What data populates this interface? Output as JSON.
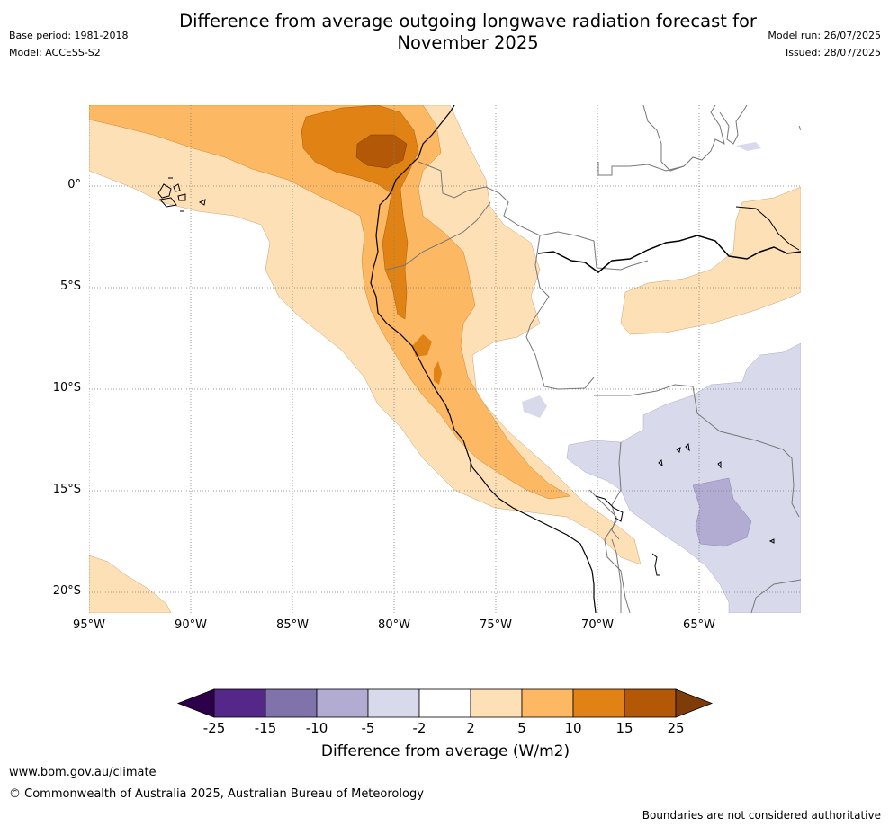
{
  "header": {
    "title_line1": "Difference from average outgoing longwave radiation forecast for",
    "title_line2": "November 2025",
    "base_period": "Base period: 1981-2018",
    "model": "Model: ACCESS-S2",
    "model_run": "Model run: 26/07/2025",
    "issued": "Issued: 28/07/2025"
  },
  "map": {
    "lat_labels": [
      "0°",
      "5°S",
      "10°S",
      "15°S",
      "20°S"
    ],
    "lon_labels": [
      "95°W",
      "90°W",
      "85°W",
      "80°W",
      "75°W",
      "70°W",
      "65°W"
    ]
  },
  "legend": {
    "ticks": [
      "-25",
      "-15",
      "-10",
      "-5",
      "-2",
      "2",
      "5",
      "10",
      "15",
      "25"
    ],
    "colors": {
      "lt_minus25": "#2d004b",
      "m25_m15": "#542788",
      "m15_m10": "#8073ac",
      "m10_m5": "#b2abd2",
      "m5_m2": "#d8daeb",
      "m2_2": "#ffffff",
      "p2_5": "#fee0b6",
      "p5_10": "#fdb863",
      "p10_15": "#e08214",
      "p15_25": "#b35806",
      "gt25": "#7f3b08"
    },
    "label": "Difference from average (W/m2)"
  },
  "footer": {
    "url": "www.bom.gov.au/climate",
    "copyright": "© Commonwealth of Australia 2025, Australian Bureau of Meteorology",
    "note": "Boundaries are not considered authoritative"
  }
}
